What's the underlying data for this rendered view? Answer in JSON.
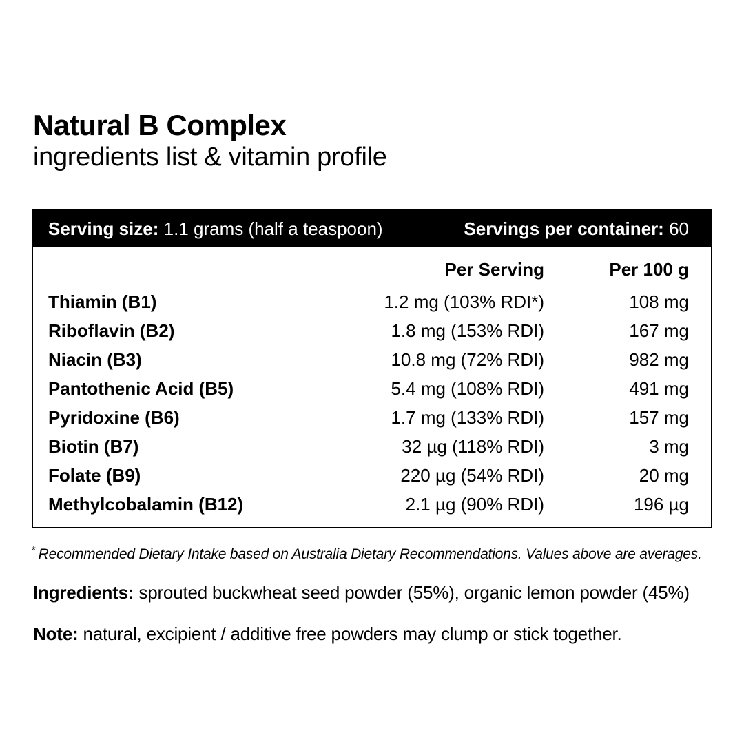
{
  "title": "Natural B Complex",
  "subtitle": "ingredients list & vitamin profile",
  "serving_bar": {
    "serving_size_label": "Serving size:",
    "serving_size_value": " 1.1 grams (half a teaspoon)",
    "servings_label": "Servings per container:",
    "servings_value": " 60"
  },
  "table": {
    "columns": [
      "Per Serving",
      "Per 100 g"
    ],
    "rows": [
      {
        "name": "Thiamin (B1)",
        "per_serving": "1.2 mg (103% RDI*)",
        "per_100g": "108 mg"
      },
      {
        "name": "Riboflavin (B2)",
        "per_serving": "1.8 mg (153% RDI)",
        "per_100g": "167 mg"
      },
      {
        "name": "Niacin (B3)",
        "per_serving": "10.8 mg (72% RDI)",
        "per_100g": "982 mg"
      },
      {
        "name": "Pantothenic Acid (B5)",
        "per_serving": "5.4 mg (108% RDI)",
        "per_100g": "491 mg"
      },
      {
        "name": "Pyridoxine (B6)",
        "per_serving": "1.7 mg (133% RDI)",
        "per_100g": "157 mg"
      },
      {
        "name": "Biotin (B7)",
        "per_serving": "32 µg (118% RDI)",
        "per_100g": "3 mg"
      },
      {
        "name": "Folate (B9)",
        "per_serving": "220 µg (54% RDI)",
        "per_100g": "20 mg"
      },
      {
        "name": "Methylcobalamin (B12)",
        "per_serving": "2.1 µg (90% RDI)",
        "per_100g": "196 µg"
      }
    ]
  },
  "footnote": {
    "marker": "*",
    "text": "Recommended Dietary Intake based on Australia Dietary Recommendations. Values above are averages."
  },
  "ingredients": {
    "label": "Ingredients:",
    "text": " sprouted buckwheat seed powder (55%), organic lemon powder (45%)"
  },
  "note": {
    "label": "Note:",
    "text": " natural, excipient / additive free powders may clump or stick together."
  },
  "colors": {
    "background": "#ffffff",
    "text": "#000000",
    "bar_background": "#000000",
    "bar_text": "#ffffff",
    "table_border": "#000000"
  }
}
